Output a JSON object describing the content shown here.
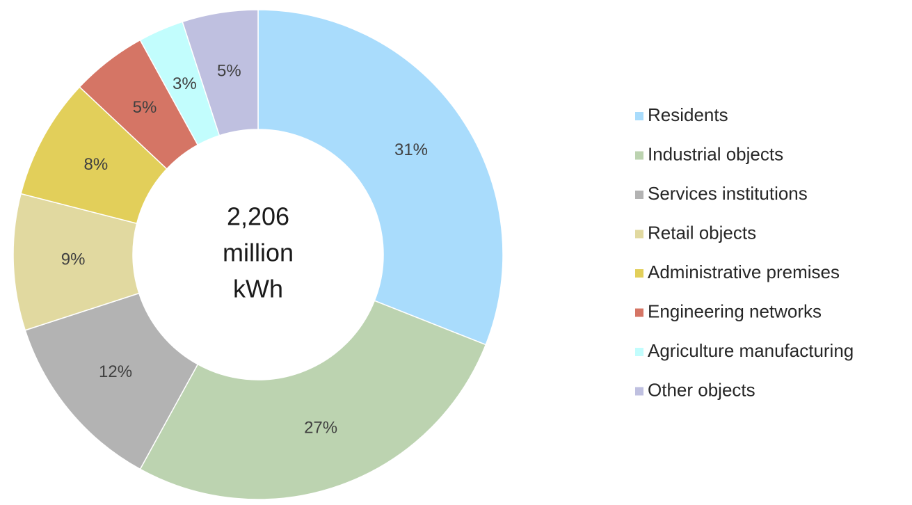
{
  "chart_data": {
    "type": "donut",
    "center_text": [
      "2,206",
      "million",
      "kWh"
    ],
    "categories": [
      "Residents",
      "Industrial objects",
      "Services institutions",
      "Retail objects",
      "Administrative premises",
      "Engineering networks",
      "Agriculture manufacturing",
      "Other objects"
    ],
    "values": [
      31,
      27,
      12,
      9,
      8,
      5,
      3,
      5
    ],
    "value_labels": [
      "31%",
      "27%",
      "12%",
      "9%",
      "8%",
      "5%",
      "3%",
      "5%"
    ],
    "colors": [
      "#a9dcfc",
      "#bcd3b0",
      "#b3b3b3",
      "#e1d9a0",
      "#e2cf5a",
      "#d57565",
      "#c2fdfd",
      "#bfc0e0"
    ],
    "legend": "right"
  }
}
